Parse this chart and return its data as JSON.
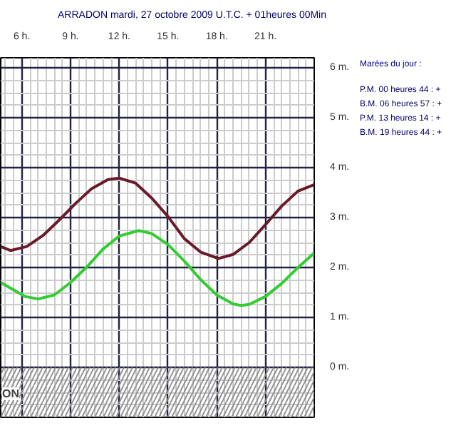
{
  "chart_data": {
    "type": "line",
    "title": "ARRADON mardi, 27 octobre 2009 U.T.C. + 01heures 00Min",
    "series": [
      {
        "color": "#6b1a2a",
        "x": [
          4.7,
          5.3,
          6.3,
          7.3,
          8.3,
          9.3,
          10.3,
          11.3,
          12.0,
          13,
          14,
          15,
          16,
          17,
          18.1,
          19,
          20,
          21,
          22,
          23,
          24
        ],
        "values": [
          2.42,
          2.34,
          2.42,
          2.64,
          2.95,
          3.28,
          3.58,
          3.76,
          3.79,
          3.69,
          3.39,
          3.02,
          2.58,
          2.31,
          2.18,
          2.26,
          2.5,
          2.86,
          3.23,
          3.53,
          3.66
        ]
      },
      {
        "color": "#33cc33",
        "x": [
          4.7,
          5.5,
          6.2,
          7.0,
          8,
          9,
          10,
          11,
          12,
          13.2,
          14,
          15,
          16,
          17,
          18,
          19,
          19.5,
          20,
          21,
          22,
          23,
          24
        ],
        "values": [
          1.7,
          1.55,
          1.42,
          1.37,
          1.45,
          1.7,
          2.01,
          2.37,
          2.63,
          2.74,
          2.68,
          2.46,
          2.13,
          1.76,
          1.45,
          1.27,
          1.24,
          1.26,
          1.42,
          1.68,
          2.0,
          2.29
        ]
      }
    ],
    "xlim": [
      4.7,
      24
    ],
    "ylim": [
      -1,
      6.2
    ],
    "xticks": [
      {
        "value": 6,
        "label": "6 h."
      },
      {
        "value": 9,
        "label": "9 h."
      },
      {
        "value": 12,
        "label": "12 h."
      },
      {
        "value": 15,
        "label": "15 h."
      },
      {
        "value": 18,
        "label": "18 h."
      },
      {
        "value": 21,
        "label": "21 h."
      }
    ],
    "yticks": [
      {
        "value": 0,
        "label": "0 m."
      },
      {
        "value": 1,
        "label": "1 m."
      },
      {
        "value": 2,
        "label": "2 m."
      },
      {
        "value": 3,
        "label": "3 m."
      },
      {
        "value": 4,
        "label": "4 m."
      },
      {
        "value": 5,
        "label": "5 m."
      },
      {
        "value": 6,
        "label": "6 m."
      }
    ],
    "grid": true,
    "line_style": "solid",
    "marker": "none",
    "bands": [
      {
        "axis": "y",
        "from": -1,
        "to": 0,
        "color": "#888888"
      }
    ],
    "annotations": [
      "Marées du jour :",
      "P.M. 00 heures 44 : +",
      "B.M. 06 heures 57 : +",
      "P.M. 13 heures 14 : +",
      "B.M. 19 heures 44 : +",
      "ON"
    ]
  }
}
